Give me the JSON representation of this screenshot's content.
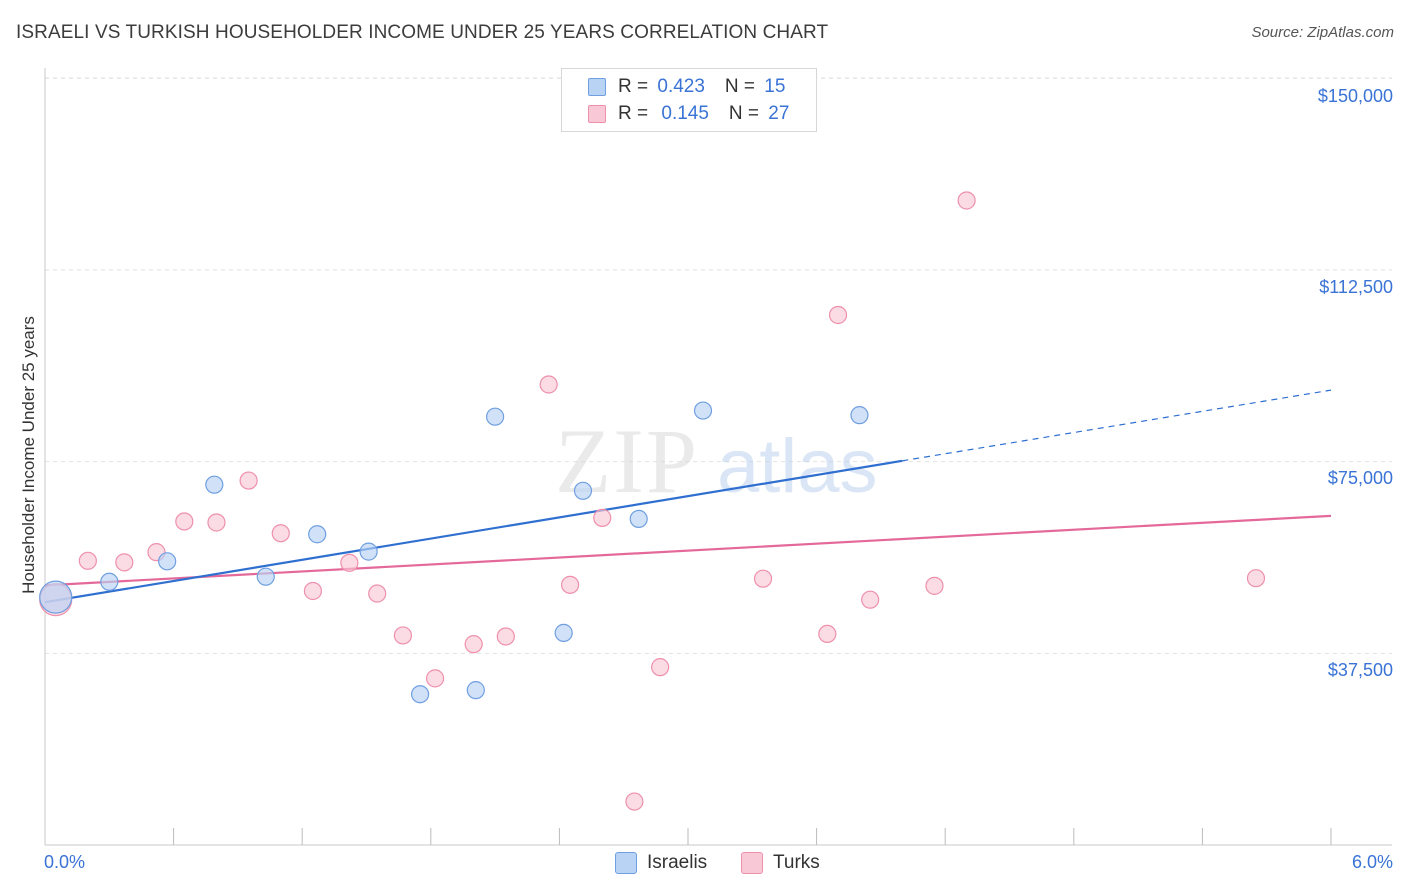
{
  "header": {
    "title": "ISRAELI VS TURKISH HOUSEHOLDER INCOME UNDER 25 YEARS CORRELATION CHART",
    "source": "Source: ZipAtlas.com"
  },
  "watermark": {
    "part1": "ZIP",
    "part2": "atlas"
  },
  "legend": {
    "israelis": {
      "r_label": "R = ",
      "r_value": "0.423",
      "n_label": "N = ",
      "n_value": "15"
    },
    "turks": {
      "r_label": "R = ",
      "r_value": "0.145",
      "n_label": "N = ",
      "n_value": "27"
    }
  },
  "bottom_legend": {
    "israelis": "Israelis",
    "turks": "Turks"
  },
  "colors": {
    "israelis_fill": "#b9d3f5",
    "israelis_stroke": "#6f9fe0",
    "israelis_line": "#2f6fd0",
    "turks_fill": "#f9c8d6",
    "turks_stroke": "#ee90ac",
    "turks_line": "#e4699a",
    "accent_text": "#3a73d6",
    "grid": "#e2e2e2"
  },
  "chart_data": {
    "type": "scatter",
    "title": "ISRAELI VS TURKISH HOUSEHOLDER INCOME UNDER 25 YEARS CORRELATION CHART",
    "xlabel": "",
    "ylabel": "Householder Income Under 25 years",
    "x_unit": "%",
    "xlim": [
      0.0,
      6.0
    ],
    "ylim": [
      0,
      153000
    ],
    "x_tick_labels": [
      "0.0%",
      "6.0%"
    ],
    "y_ticks": [
      37500,
      75000,
      112500,
      150000
    ],
    "y_tick_labels": [
      "$37,500",
      "$75,000",
      "$112,500",
      "$150,000"
    ],
    "grid": "horizontal dashed",
    "legend_position": "top-center",
    "series": [
      {
        "name": "Israelis",
        "R": 0.423,
        "N": 15,
        "points": [
          {
            "x": 0.05,
            "y": 48500,
            "large": true
          },
          {
            "x": 0.3,
            "y": 51500
          },
          {
            "x": 0.57,
            "y": 55500
          },
          {
            "x": 0.79,
            "y": 70500
          },
          {
            "x": 1.03,
            "y": 52500
          },
          {
            "x": 1.27,
            "y": 60800
          },
          {
            "x": 1.51,
            "y": 57400
          },
          {
            "x": 1.75,
            "y": 29500
          },
          {
            "x": 2.01,
            "y": 30300
          },
          {
            "x": 2.1,
            "y": 83800
          },
          {
            "x": 2.42,
            "y": 41500
          },
          {
            "x": 2.51,
            "y": 69300
          },
          {
            "x": 2.77,
            "y": 63800
          },
          {
            "x": 3.07,
            "y": 85000
          },
          {
            "x": 3.8,
            "y": 84100
          }
        ],
        "trend": {
          "x0": 0.0,
          "y0": 47500,
          "x_solid_end": 4.0,
          "x1": 6.0,
          "y1": 89000
        }
      },
      {
        "name": "Turks",
        "R": 0.145,
        "N": 27,
        "points": [
          {
            "x": 0.05,
            "y": 48000,
            "large": true
          },
          {
            "x": 0.2,
            "y": 55600
          },
          {
            "x": 0.37,
            "y": 55300
          },
          {
            "x": 0.52,
            "y": 57300
          },
          {
            "x": 0.65,
            "y": 63300
          },
          {
            "x": 0.8,
            "y": 63100
          },
          {
            "x": 0.95,
            "y": 71300
          },
          {
            "x": 1.1,
            "y": 61000
          },
          {
            "x": 1.25,
            "y": 49700
          },
          {
            "x": 1.42,
            "y": 55200
          },
          {
            "x": 1.55,
            "y": 49200
          },
          {
            "x": 1.67,
            "y": 41000
          },
          {
            "x": 1.82,
            "y": 32600
          },
          {
            "x": 2.0,
            "y": 39300
          },
          {
            "x": 2.15,
            "y": 40800
          },
          {
            "x": 2.35,
            "y": 90100
          },
          {
            "x": 2.45,
            "y": 50900
          },
          {
            "x": 2.6,
            "y": 64000
          },
          {
            "x": 2.75,
            "y": 8500
          },
          {
            "x": 2.87,
            "y": 34800
          },
          {
            "x": 3.35,
            "y": 52100
          },
          {
            "x": 3.65,
            "y": 41300
          },
          {
            "x": 3.7,
            "y": 103700
          },
          {
            "x": 3.85,
            "y": 48000
          },
          {
            "x": 4.15,
            "y": 50700
          },
          {
            "x": 4.3,
            "y": 126100
          },
          {
            "x": 5.65,
            "y": 52200
          }
        ],
        "trend": {
          "x0": 0.0,
          "y0": 50800,
          "x1": 6.0,
          "y1": 64400
        }
      }
    ]
  }
}
